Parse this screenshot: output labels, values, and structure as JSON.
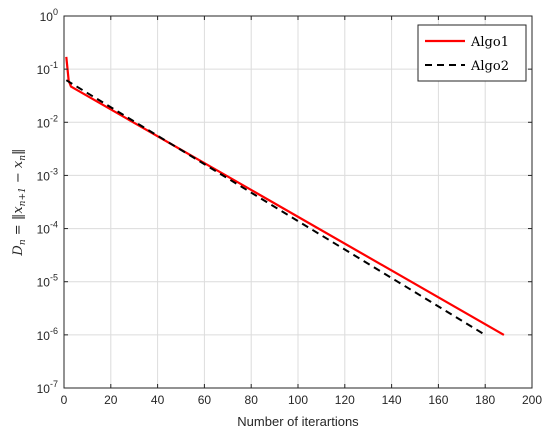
{
  "chart_data": {
    "type": "line",
    "title": "",
    "xlabel": "Number of iterartions",
    "ylabel": "D_n = ||x_{n+1} - x_n||",
    "ylabel_parts": {
      "lhs": "D",
      "lhs_sub": "n",
      "eq": " = ‖",
      "x1": "x",
      "x1_sub": "n+1",
      "minus": " − ",
      "x2": "x",
      "x2_sub": "n",
      "close": "‖"
    },
    "xlim": [
      0,
      200
    ],
    "ylim": [
      1e-07,
      1
    ],
    "yscale": "log",
    "grid": true,
    "legend_position": "top-right",
    "xticks": [
      0,
      20,
      40,
      60,
      80,
      100,
      120,
      140,
      160,
      180,
      200
    ],
    "ytick_exponents": [
      0,
      -1,
      -2,
      -3,
      -4,
      -5,
      -6,
      -7
    ],
    "ytick_base": "10",
    "series": [
      {
        "name": "Algo1",
        "color": "#ff0000",
        "style": "solid",
        "x": [
          1,
          2,
          3,
          188
        ],
        "y": [
          0.17,
          0.06,
          0.047,
          1e-06
        ]
      },
      {
        "name": "Algo2",
        "color": "#000000",
        "style": "dashed",
        "x": [
          1,
          180
        ],
        "y": [
          0.062,
          1e-06
        ]
      }
    ]
  }
}
